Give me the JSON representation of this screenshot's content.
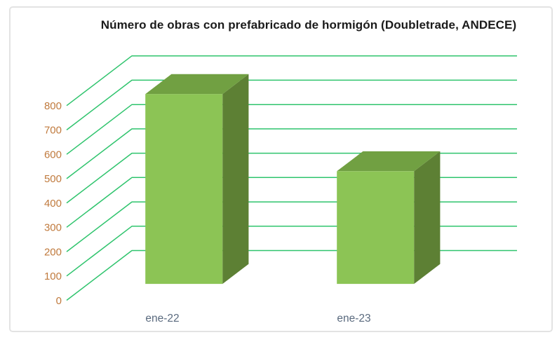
{
  "chart_data": {
    "type": "bar",
    "projection": "3d-perspective",
    "title": "Número de obras con prefabricado de hormigón (Doubletrade, ANDECE)",
    "categories": [
      "ene-22",
      "ene-23"
    ],
    "values": [
      780,
      463
    ],
    "series": [
      {
        "name": "Número de obras",
        "values": [
          780,
          463
        ]
      }
    ],
    "xlabel": "",
    "ylabel": "",
    "ylim": [
      0,
      800
    ],
    "ytick_step": 100,
    "yticks": [
      0,
      100,
      200,
      300,
      400,
      500,
      600,
      700,
      800
    ],
    "grid": true,
    "legend": false,
    "colors": {
      "bar_front": "#8cc455",
      "bar_top": "#71a042",
      "bar_side": "#5d8034",
      "gridline": "#2fc46d",
      "ytick_label": "#c07a3d",
      "xtick_label": "#5a6a7e",
      "title_text": "#1b1b1b",
      "frame_border": "#e3e3e3",
      "background": "#ffffff"
    }
  }
}
